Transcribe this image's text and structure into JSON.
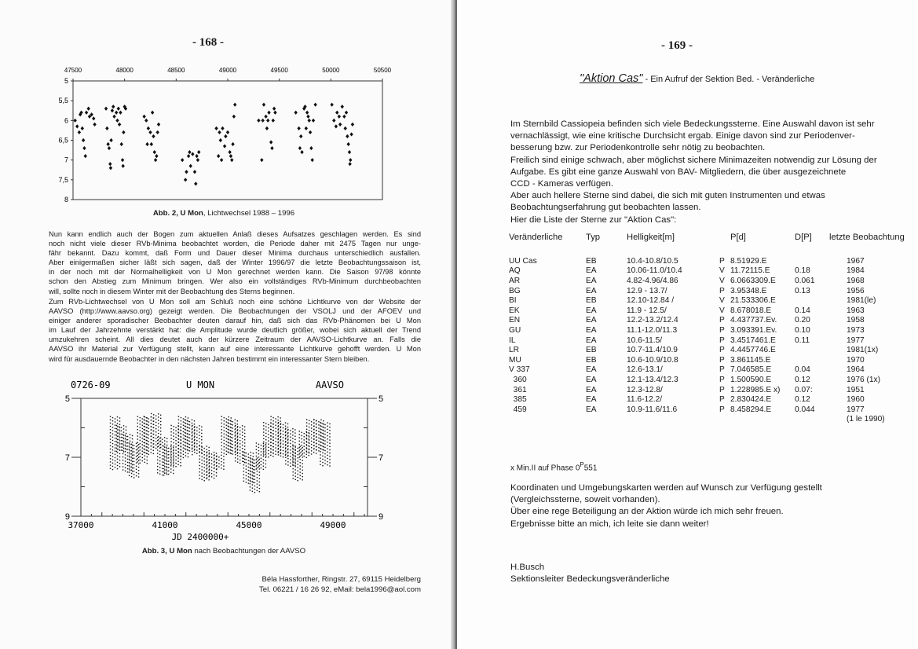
{
  "left_page": {
    "page_number": "- 168 -",
    "figure2_caption_bold": "Abb. 2, U Mon",
    "figure2_caption_rest": ", Lichtwechsel 1988 – 1996",
    "paragraph1": [
      "Nun kann endlich auch der Bogen zum aktuellen Anlaß dieses Aufsatzes geschlagen werden. Es sind",
      "noch nicht viele dieser RVb-Minima beobachtet worden, die Periode daher mit 2475 Tagen nur unge-",
      "fähr bekannt. Dazu kommt, daß Form und Dauer dieser Minima durchaus unterschiedlich ausfallen.",
      "Aber einigermaßen sicher läßt sich sagen, daß der Winter 1996/97 die letzte Beobachtungssaison ist,",
      "in der noch mit der Normalhelligkeit von U Mon gerechnet werden kann. Die Saison 97/98 könnte",
      "schon den Abstieg zum Minimum bringen. Wer also ein vollständiges RVb-Minimum durchbeobachten",
      "will, sollte noch in diesem Winter mit der Beobachtung des Sterns beginnen."
    ],
    "paragraph2": [
      "Zum RVb-Lichtwechsel von U Mon soll am Schluß noch eine schöne Lichtkurve von der Website der",
      "AAVSO (http://www.aavso.org) gezeigt werden. Die Beobachtungen der VSOLJ und der AFOEV und",
      "einiger anderer sporadischer Beobachter deuten darauf hin, daß sich das RVb-Phänomen bei U Mon",
      "im Lauf der Jahrzehnte verstärkt hat: die Amplitude wurde deutlich größer, wobei sich aktuell der Trend",
      "umzukehren scheint. All dies deutet auch der kürzere Zeitraum der AAVSO-Lichtkurve an. Falls die",
      "AAVSO ihr Material zur Verfügung stellt, kann auf eine interessante Lichtkurve gehofft werden. U Mon",
      "wird für ausdauernde Beobachter in den nächsten Jahren bestimmt ein interessanter Stern bleiben."
    ],
    "figure3_caption_bold": "Abb. 3, U Mon",
    "figure3_caption_rest": " nach Beobachtungen der AAVSO",
    "signature": [
      "Béla Hassforther, Ringstr. 27, 69115 Heidelberg",
      "Tel. 06221 / 16 26 92, eMail: bela1996@aol.com"
    ]
  },
  "chart_data": [
    {
      "type": "scatter",
      "title": "",
      "xlabel": "",
      "ylabel": "",
      "xlim": [
        47500,
        50500
      ],
      "ylim": [
        8,
        5
      ],
      "y_inverted": true,
      "x_ticks": [
        "47500",
        "48000",
        "48500",
        "49000",
        "49500",
        "50000",
        "50500"
      ],
      "y_ticks": [
        "5",
        "5,5",
        "6",
        "6,5",
        "7",
        "7,5",
        "8"
      ],
      "x_axis_position": "top",
      "marker": "diamond",
      "color": "#111111",
      "points": [
        [
          47520,
          6.0
        ],
        [
          47540,
          6.15
        ],
        [
          47560,
          6.3
        ],
        [
          47570,
          5.85
        ],
        [
          47580,
          5.8
        ],
        [
          47590,
          6.2
        ],
        [
          47600,
          6.5
        ],
        [
          47610,
          6.7
        ],
        [
          47620,
          6.9
        ],
        [
          47630,
          5.8
        ],
        [
          47650,
          5.7
        ],
        [
          47660,
          5.9
        ],
        [
          47680,
          5.85
        ],
        [
          47700,
          5.95
        ],
        [
          47710,
          6.1
        ],
        [
          47820,
          5.7
        ],
        [
          47830,
          6.2
        ],
        [
          47840,
          6.6
        ],
        [
          47850,
          6.7
        ],
        [
          47860,
          7.1
        ],
        [
          47865,
          7.2
        ],
        [
          47870,
          6.5
        ],
        [
          47880,
          5.75
        ],
        [
          47890,
          5.65
        ],
        [
          47900,
          5.9
        ],
        [
          47920,
          5.8
        ],
        [
          47930,
          6.0
        ],
        [
          47940,
          5.7
        ],
        [
          47950,
          6.1
        ],
        [
          47960,
          5.8
        ],
        [
          47970,
          6.6
        ],
        [
          47980,
          7.0
        ],
        [
          47985,
          7.15
        ],
        [
          47990,
          6.3
        ],
        [
          48000,
          5.65
        ],
        [
          48010,
          5.7
        ],
        [
          48190,
          5.9
        ],
        [
          48210,
          6.0
        ],
        [
          48220,
          6.6
        ],
        [
          48230,
          6.2
        ],
        [
          48250,
          6.3
        ],
        [
          48260,
          6.6
        ],
        [
          48270,
          5.8
        ],
        [
          48280,
          6.4
        ],
        [
          48290,
          6.8
        ],
        [
          48300,
          7.0
        ],
        [
          48310,
          6.9
        ],
        [
          48320,
          6.3
        ],
        [
          48330,
          6.1
        ],
        [
          48560,
          7.0
        ],
        [
          48590,
          7.5
        ],
        [
          48600,
          7.3
        ],
        [
          48620,
          6.9
        ],
        [
          48630,
          6.8
        ],
        [
          48640,
          7.15
        ],
        [
          48660,
          6.85
        ],
        [
          48680,
          7.3
        ],
        [
          48690,
          7.6
        ],
        [
          48700,
          6.9
        ],
        [
          48710,
          7.0
        ],
        [
          48720,
          6.8
        ],
        [
          48890,
          6.2
        ],
        [
          48910,
          6.9
        ],
        [
          48920,
          6.3
        ],
        [
          48930,
          6.5
        ],
        [
          48940,
          7.0
        ],
        [
          48950,
          6.2
        ],
        [
          48970,
          6.65
        ],
        [
          48980,
          6.4
        ],
        [
          49000,
          6.3
        ],
        [
          49020,
          6.8
        ],
        [
          49030,
          6.9
        ],
        [
          49040,
          7.0
        ],
        [
          49050,
          6.6
        ],
        [
          49060,
          5.9
        ],
        [
          49070,
          5.6
        ],
        [
          49300,
          6.0
        ],
        [
          49330,
          7.0
        ],
        [
          49340,
          6.0
        ],
        [
          49350,
          5.6
        ],
        [
          49370,
          5.9
        ],
        [
          49380,
          6.2
        ],
        [
          49390,
          6.0
        ],
        [
          49400,
          5.8
        ],
        [
          49420,
          6.55
        ],
        [
          49430,
          6.7
        ],
        [
          49440,
          6.0
        ],
        [
          49450,
          5.7
        ],
        [
          49460,
          5.8
        ],
        [
          49660,
          5.8
        ],
        [
          49690,
          6.2
        ],
        [
          49700,
          6.7
        ],
        [
          49710,
          6.4
        ],
        [
          49720,
          6.8
        ],
        [
          49740,
          5.7
        ],
        [
          49750,
          5.65
        ],
        [
          49760,
          6.2
        ],
        [
          49770,
          5.8
        ],
        [
          49780,
          5.9
        ],
        [
          49790,
          6.0
        ],
        [
          49800,
          6.3
        ],
        [
          49810,
          6.7
        ],
        [
          49820,
          7.0
        ],
        [
          49830,
          6.0
        ],
        [
          49850,
          5.6
        ],
        [
          50010,
          5.6
        ],
        [
          50030,
          6.0
        ],
        [
          50050,
          6.15
        ],
        [
          50060,
          5.8
        ],
        [
          50080,
          5.9
        ],
        [
          50090,
          6.1
        ],
        [
          50110,
          5.65
        ],
        [
          50130,
          5.9
        ],
        [
          50140,
          6.2
        ],
        [
          50150,
          5.8
        ],
        [
          50160,
          6.4
        ],
        [
          50170,
          6.6
        ],
        [
          50180,
          6.8
        ],
        [
          50185,
          7.1
        ],
        [
          50190,
          7.0
        ],
        [
          50200,
          6.35
        ],
        [
          50210,
          6.1
        ]
      ]
    },
    {
      "type": "scatter",
      "title_left": "0726-09",
      "title_center": "U MON",
      "title_right": "AAVSO",
      "xlabel": "JD 2400000+",
      "ylabel": "",
      "xlim": [
        37000,
        50600
      ],
      "ylim": [
        9,
        5
      ],
      "y_inverted": true,
      "x_ticks": [
        "37000",
        "41000",
        "45000",
        "49000"
      ],
      "y_ticks": [
        "5",
        "7",
        "9"
      ],
      "color": "#111111",
      "seasonal_ranges": [
        [
          38600,
          5.6,
          7.4
        ],
        [
          38900,
          5.9,
          6.8
        ],
        [
          39200,
          6.2,
          7.5
        ],
        [
          39500,
          6.5,
          7.7
        ],
        [
          39900,
          5.6,
          7.2
        ],
        [
          40200,
          5.6,
          6.9
        ],
        [
          40550,
          5.5,
          6.7
        ],
        [
          40850,
          6.3,
          7.6
        ],
        [
          41150,
          6.6,
          7.6
        ],
        [
          41500,
          5.9,
          7.3
        ],
        [
          41850,
          5.6,
          7.0
        ],
        [
          42150,
          5.7,
          6.8
        ],
        [
          42500,
          5.9,
          6.9
        ],
        [
          42850,
          6.6,
          7.8
        ],
        [
          43200,
          6.8,
          7.7
        ],
        [
          43550,
          6.9,
          7.4
        ],
        [
          43900,
          5.6,
          6.9
        ],
        [
          44200,
          5.7,
          6.9
        ],
        [
          44550,
          5.9,
          7.2
        ],
        [
          44950,
          6.8,
          7.9
        ],
        [
          45250,
          7.0,
          8.2
        ],
        [
          45550,
          6.5,
          7.4
        ],
        [
          45900,
          5.8,
          7.0
        ],
        [
          46250,
          5.6,
          6.9
        ],
        [
          46600,
          5.8,
          7.0
        ],
        [
          46950,
          6.0,
          7.3
        ],
        [
          47300,
          6.6,
          7.8
        ],
        [
          47600,
          6.1,
          7.0
        ],
        [
          47950,
          5.7,
          6.9
        ],
        [
          48300,
          5.7,
          6.8
        ],
        [
          48600,
          5.8,
          7.3
        ]
      ]
    }
  ],
  "right_page": {
    "page_number": "- 169 -",
    "title_link": "\"Aktion Cas\"",
    "title_rest": " - Ein Aufruf der Sektion Bed. - Veränderliche",
    "intro": [
      "Im Sternbild Cassiopeia befinden sich viele Bedeckungssterne. Eine Auswahl davon ist sehr",
      "vernachlässigt, wie eine kritische Durchsicht ergab. Einige davon sind zur Periodenver-",
      "besserung bzw. zur Periodenkontrolle sehr nötig zu beobachten.",
      "Freilich sind einige schwach, aber möglichst sichere Minimazeiten notwendig zur Lösung der",
      "Aufgabe. Es gibt eine ganze Auswahl von BAV- Mitgliedern, die über ausgezeichnete",
      "CCD - Kameras verfügen.",
      "Aber auch hellere Sterne sind dabei, die sich mit guten Instrumenten und etwas",
      "Beobachtungserfahrung gut beobachten lassen.",
      "Hier die Liste der Sterne zur \"Aktion Cas\":"
    ],
    "table": {
      "headers": [
        "Veränderliche",
        "Typ",
        "Helligkeit[m]",
        "",
        "P[d]",
        "D[P]",
        "letzte Beobachtung"
      ],
      "rows": [
        [
          "UU Cas",
          "EB",
          "10.4-10.8/10.5",
          "P",
          "8.51929.E",
          "",
          "1967"
        ],
        [
          "AQ",
          "EA",
          "10.06-11.0/10.4",
          "V",
          "11.72115.E",
          "0.18",
          "1984"
        ],
        [
          "AR",
          "EA",
          "4.82-4.96/4.86",
          "V",
          "6.0663309.E",
          "0.061",
          "1968"
        ],
        [
          "BG",
          "EA",
          "12.9 - 13.7/",
          "P",
          "3.95348.E",
          "0.13",
          "1956"
        ],
        [
          "BI",
          "EB",
          "12.10-12.84 /",
          "V",
          "21.533306.E",
          "",
          "1981(le)"
        ],
        [
          "EK",
          "EA",
          "11.9 - 12.5/",
          "V",
          "8.678018.E",
          "0.14",
          "1963"
        ],
        [
          "EN",
          "EA",
          "12.2-13.2/12.4",
          "P",
          "4.437737.Ev.",
          "0.20",
          "1958"
        ],
        [
          "GU",
          "EA",
          "11.1-12.0/11.3",
          "P",
          "3.093391.Ev.",
          "0.10",
          "1973"
        ],
        [
          "IL",
          "EA",
          "10.6-11.5/",
          "P",
          "3.4517461.E",
          "0.11",
          "1977"
        ],
        [
          "LR",
          "EB",
          "10.7-11.4/10.9",
          "P",
          "4.4457746.E",
          "",
          "1981(1x)"
        ],
        [
          "MU",
          "EB",
          "10.6-10.9/10.8",
          "P",
          "3.861145.E",
          "",
          "1970"
        ],
        [
          "V 337",
          "EA",
          "12.6-13.1/",
          "P",
          "7.046585.E",
          "0.04",
          "1964"
        ],
        [
          "  360",
          "EA",
          "12.1-13.4/12.3",
          "P",
          "1.500590.E",
          "0.12",
          "1976 (1x)"
        ],
        [
          "  361",
          "EA",
          "12.3-12.8/",
          "P",
          "1.228985.E x)",
          "0.07:",
          "1951"
        ],
        [
          "  385",
          "EA",
          "11.6-12.2/",
          "P",
          "2.830424.E",
          "0.12",
          "1960"
        ],
        [
          "  459",
          "EA",
          "10.9-11.6/11.6",
          "P",
          "8.458294.E",
          "0.044",
          "1977"
        ],
        [
          "",
          "",
          "",
          "",
          "",
          "",
          "(1 le 1990)"
        ]
      ]
    },
    "footnote_prefix": "x Min.II auf Phase 0",
    "footnote_sup": "P",
    "footnote_suffix": "551",
    "closing": [
      "Koordinaten und Umgebungskarten werden auf Wunsch zur Verfügung gestellt",
      "(Vergleichssterne, soweit vorhanden).",
      "Über eine rege Beteiligung an der Aktion würde ich mich sehr freuen.",
      "Ergebnisse bitte an mich, ich leite sie dann weiter!"
    ],
    "author": "H.Busch",
    "author_role": "Sektionsleiter Bedeckungsveränderliche"
  }
}
